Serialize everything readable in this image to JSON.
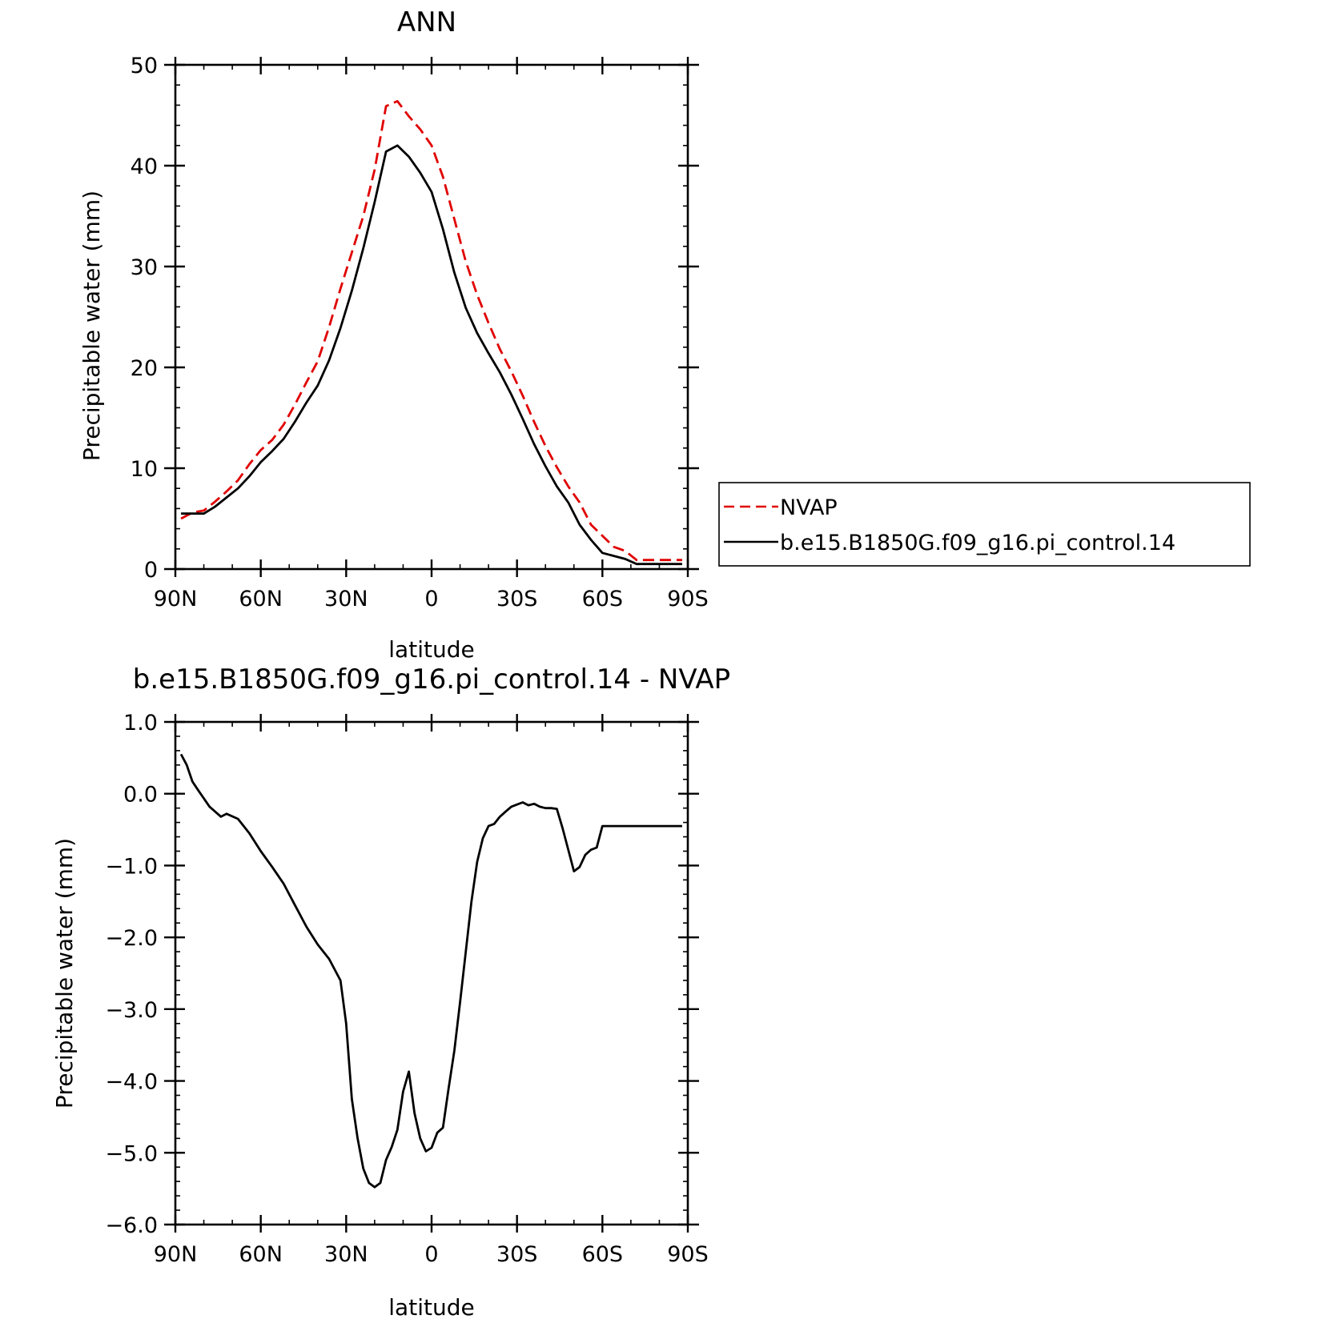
{
  "chart_data": [
    {
      "type": "line",
      "title": "ANN",
      "xlabel": "latitude",
      "ylabel": "Precipitable water (mm)",
      "xlim": [
        90,
        -90
      ],
      "ylim": [
        0,
        50
      ],
      "x_ticks": [
        90,
        60,
        30,
        0,
        -30,
        -60,
        -90
      ],
      "x_tick_labels": [
        "90N",
        "60N",
        "30N",
        "0",
        "30S",
        "60S",
        "90S"
      ],
      "y_ticks": [
        0,
        10,
        20,
        30,
        40,
        50
      ],
      "y_tick_labels": [
        "0",
        "10",
        "20",
        "30",
        "40",
        "50"
      ],
      "grid": false,
      "legend_position": "right",
      "series": [
        {
          "name": "NVAP",
          "color": "#e00000",
          "style": "dashed",
          "x": [
            88,
            84,
            80,
            76,
            72,
            68,
            64,
            60,
            56,
            52,
            48,
            44,
            40,
            36,
            32,
            28,
            24,
            20,
            16,
            12,
            8,
            4,
            0,
            -4,
            -8,
            -12,
            -16,
            -20,
            -24,
            -28,
            -32,
            -36,
            -40,
            -44,
            -48,
            -52,
            -56,
            -60,
            -64,
            -68,
            -72,
            -76,
            -80,
            -84,
            -88
          ],
          "y": [
            5.0,
            5.6,
            5.8,
            6.7,
            7.7,
            8.8,
            10.4,
            11.8,
            12.8,
            14.3,
            16.3,
            18.5,
            20.6,
            24.0,
            27.8,
            31.4,
            35.0,
            39.6,
            45.9,
            46.4,
            44.9,
            43.6,
            42.0,
            38.9,
            34.7,
            30.5,
            27.2,
            24.4,
            21.8,
            19.6,
            17.2,
            14.6,
            12.2,
            10.1,
            8.2,
            6.6,
            4.4,
            3.3,
            2.2,
            1.8,
            0.9,
            0.9,
            0.9,
            0.9,
            0.9
          ]
        },
        {
          "name": "b.e15.B1850G.f09_g16.pi_control.14",
          "color": "#000000",
          "style": "solid",
          "x": [
            88,
            84,
            80,
            76,
            72,
            68,
            64,
            60,
            56,
            52,
            48,
            44,
            40,
            36,
            32,
            28,
            24,
            20,
            16,
            12,
            8,
            4,
            0,
            -4,
            -8,
            -12,
            -16,
            -20,
            -24,
            -28,
            -32,
            -36,
            -40,
            -44,
            -48,
            -52,
            -56,
            -60,
            -64,
            -68,
            -72,
            -76,
            -80,
            -84,
            -88
          ],
          "y": [
            5.5,
            5.5,
            5.5,
            6.2,
            7.1,
            8.0,
            9.2,
            10.6,
            11.7,
            12.9,
            14.6,
            16.5,
            18.2,
            20.7,
            23.9,
            27.6,
            31.8,
            36.4,
            41.4,
            42.0,
            40.9,
            39.3,
            37.4,
            33.7,
            29.4,
            25.9,
            23.4,
            21.4,
            19.5,
            17.3,
            14.9,
            12.4,
            10.2,
            8.2,
            6.6,
            4.4,
            2.9,
            1.6,
            1.3,
            1.0,
            0.5,
            0.5,
            0.5,
            0.5,
            0.5
          ]
        }
      ]
    },
    {
      "type": "line",
      "title": "b.e15.B1850G.f09_g16.pi_control.14 - NVAP",
      "xlabel": "latitude",
      "ylabel": "Precipitable water (mm)",
      "xlim": [
        90,
        -90
      ],
      "ylim": [
        -6.0,
        1.0
      ],
      "x_ticks": [
        90,
        60,
        30,
        0,
        -30,
        -60,
        -90
      ],
      "x_tick_labels": [
        "90N",
        "60N",
        "30N",
        "0",
        "30S",
        "60S",
        "90S"
      ],
      "y_ticks": [
        1.0,
        0.0,
        -1.0,
        -2.0,
        -3.0,
        -4.0,
        -5.0,
        -6.0
      ],
      "y_tick_labels": [
        "1.0",
        "0.0",
        "−1.0",
        "−2.0",
        "−3.0",
        "−4.0",
        "−5.0",
        "−6.0"
      ],
      "grid": false,
      "series": [
        {
          "color": "#000000",
          "style": "solid",
          "x": [
            88,
            86,
            84,
            82,
            78,
            74,
            72,
            68,
            64,
            60,
            56,
            52,
            48,
            44,
            40,
            36,
            32,
            30,
            28,
            26,
            24,
            22,
            20,
            18,
            16,
            14,
            12,
            10,
            8,
            6,
            4,
            2,
            0,
            -2,
            -4,
            -6,
            -8,
            -10,
            -12,
            -14,
            -16,
            -18,
            -20,
            -22,
            -24,
            -26,
            -28,
            -30,
            -32,
            -34,
            -36,
            -38,
            -40,
            -42,
            -44,
            -46,
            -48,
            -50,
            -52,
            -54,
            -56,
            -58,
            -60,
            -62,
            -64,
            -66,
            -68,
            -70,
            -72,
            -74,
            -76,
            -78,
            -80,
            -82,
            -84,
            -86,
            -88
          ],
          "y": [
            0.55,
            0.4,
            0.17,
            0.05,
            -0.18,
            -0.32,
            -0.28,
            -0.35,
            -0.55,
            -0.8,
            -1.02,
            -1.25,
            -1.55,
            -1.85,
            -2.1,
            -2.3,
            -2.6,
            -3.2,
            -4.25,
            -4.8,
            -5.22,
            -5.42,
            -5.48,
            -5.42,
            -5.1,
            -4.92,
            -4.68,
            -4.15,
            -3.87,
            -4.45,
            -4.8,
            -4.98,
            -4.93,
            -4.72,
            -4.65,
            -4.1,
            -3.58,
            -2.9,
            -2.2,
            -1.5,
            -0.95,
            -0.62,
            -0.45,
            -0.42,
            -0.32,
            -0.25,
            -0.18,
            -0.15,
            -0.12,
            -0.16,
            -0.14,
            -0.18,
            -0.2,
            -0.2,
            -0.21,
            -0.48,
            -0.78,
            -1.08,
            -1.02,
            -0.85,
            -0.78,
            -0.75,
            -0.45,
            -0.45,
            -0.45,
            -0.45,
            -0.45,
            -0.45,
            -0.45,
            -0.45,
            -0.45,
            -0.45,
            -0.45,
            -0.45,
            -0.45,
            -0.45,
            -0.45
          ]
        }
      ]
    }
  ]
}
